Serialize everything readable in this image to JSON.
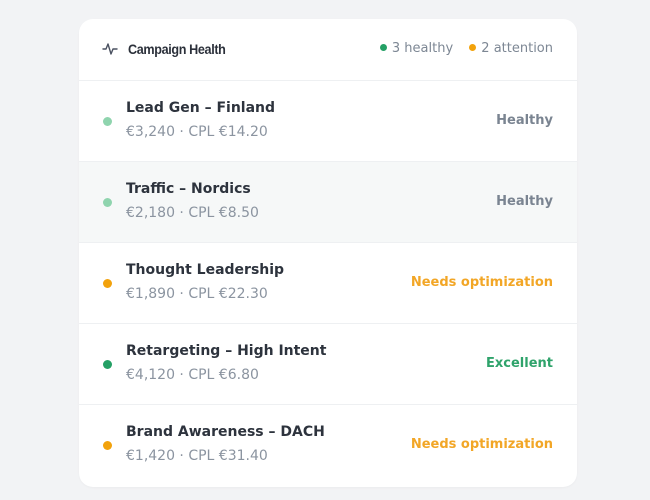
{
  "header": {
    "title": "Campaign Health",
    "summary": [
      "3 healthy",
      "2 attention"
    ]
  },
  "rows": [
    {
      "name": "Lead Gen – Finland",
      "detail": "€3,240 · CPL €14.20",
      "status": "Healthy"
    },
    {
      "name": "Traffic – Nordics",
      "detail": "€2,180 · CPL €8.50",
      "status": "Healthy"
    },
    {
      "name": "Thought Leadership",
      "detail": "€1,890 · CPL €22.30",
      "status": "Needs optimization"
    },
    {
      "name": "Retargeting – High Intent",
      "detail": "€4,120 · CPL €6.80",
      "status": "Excellent"
    },
    {
      "name": "Brand Awareness – DACH",
      "detail": "€1,420 · CPL €31.40",
      "status": "Needs optimization"
    }
  ]
}
